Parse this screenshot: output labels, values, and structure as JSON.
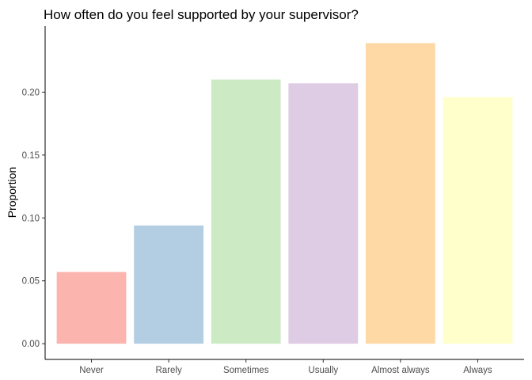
{
  "chart_data": {
    "type": "bar",
    "title": "How often do you feel supported by your supervisor?",
    "xlabel": "",
    "ylabel": "Proportion",
    "categories": [
      "Never",
      "Rarely",
      "Sometimes",
      "Usually",
      "Almost always",
      "Always"
    ],
    "values": [
      0.057,
      0.094,
      0.21,
      0.207,
      0.239,
      0.196
    ],
    "colors": [
      "#FBB4AE",
      "#B3CDE3",
      "#CCEBC5",
      "#DECBE4",
      "#FED9A6",
      "#FFFFCC"
    ],
    "ylim": [
      -0.0125,
      0.2525
    ],
    "yticks": [
      0.0,
      0.05,
      0.1,
      0.15,
      0.2
    ],
    "ytick_labels": [
      "0.00",
      "0.05",
      "0.10",
      "0.15",
      "0.20"
    ],
    "grid": false,
    "legend": "none"
  }
}
